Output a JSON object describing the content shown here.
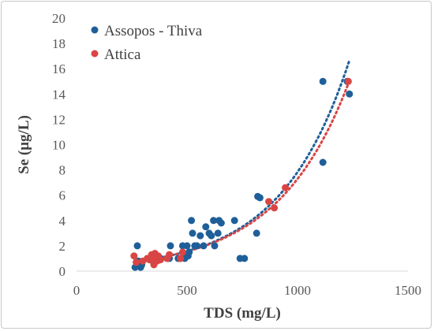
{
  "chart_data": {
    "type": "scatter",
    "title": "",
    "xlabel": "TDS (mg/L)",
    "ylabel": "Se (μg/L)",
    "xlim": [
      0,
      1500
    ],
    "ylim": [
      0,
      20
    ],
    "x_ticks": [
      "0",
      "500",
      "1000",
      "1500"
    ],
    "y_ticks": [
      "0",
      "2",
      "4",
      "6",
      "8",
      "10",
      "12",
      "14",
      "16",
      "18",
      "20"
    ],
    "grid": false,
    "legend_position": "top-left",
    "series": [
      {
        "name": "Assopos - Thiva",
        "color": "#1f5f99",
        "trendline": "exponential",
        "points": [
          [
            265,
            0.3
          ],
          [
            275,
            2
          ],
          [
            280,
            0.8
          ],
          [
            290,
            0.3
          ],
          [
            295,
            0.5
          ],
          [
            330,
            1
          ],
          [
            345,
            0.8
          ],
          [
            380,
            1
          ],
          [
            410,
            1
          ],
          [
            420,
            1
          ],
          [
            425,
            2
          ],
          [
            460,
            1
          ],
          [
            470,
            1
          ],
          [
            480,
            2
          ],
          [
            490,
            1
          ],
          [
            500,
            2
          ],
          [
            505,
            1.2
          ],
          [
            510,
            1.5
          ],
          [
            520,
            4
          ],
          [
            525,
            3
          ],
          [
            535,
            2
          ],
          [
            545,
            2
          ],
          [
            560,
            2.8
          ],
          [
            575,
            2
          ],
          [
            585,
            3.5
          ],
          [
            600,
            3
          ],
          [
            610,
            2.8
          ],
          [
            620,
            4
          ],
          [
            625,
            2
          ],
          [
            640,
            3
          ],
          [
            645,
            4
          ],
          [
            655,
            3.8
          ],
          [
            715,
            4
          ],
          [
            740,
            1
          ],
          [
            760,
            1
          ],
          [
            815,
            3
          ],
          [
            820,
            5.9
          ],
          [
            830,
            5.8
          ],
          [
            1115,
            15
          ],
          [
            1115,
            8.6
          ],
          [
            1225,
            15
          ],
          [
            1235,
            14
          ]
        ]
      },
      {
        "name": "Attica",
        "color": "#d94545",
        "trendline": "exponential",
        "points": [
          [
            260,
            1.2
          ],
          [
            270,
            0.7
          ],
          [
            300,
            0.8
          ],
          [
            320,
            1
          ],
          [
            330,
            0.9
          ],
          [
            340,
            1.3
          ],
          [
            345,
            1
          ],
          [
            350,
            0.5
          ],
          [
            355,
            1.4
          ],
          [
            360,
            1.1
          ],
          [
            365,
            0.8
          ],
          [
            370,
            1.2
          ],
          [
            380,
            0.9
          ],
          [
            410,
            1
          ],
          [
            420,
            1.3
          ],
          [
            470,
            1
          ],
          [
            480,
            1.5
          ],
          [
            870,
            5.5
          ],
          [
            895,
            5
          ],
          [
            945,
            6.6
          ],
          [
            1230,
            15
          ]
        ]
      }
    ]
  }
}
